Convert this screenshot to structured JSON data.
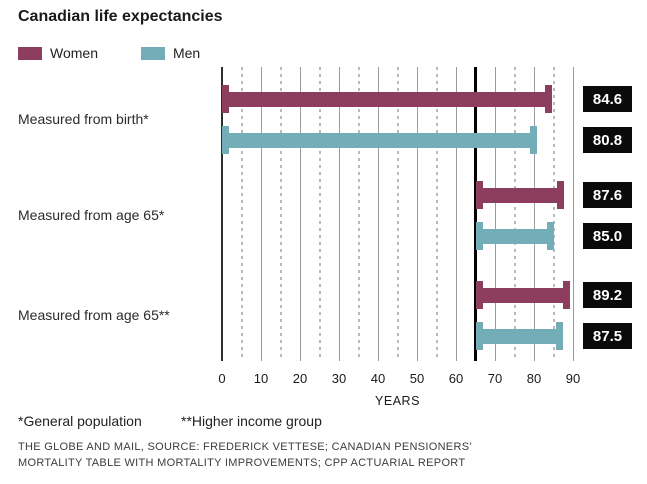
{
  "title": "Canadian life expectancies",
  "legend": {
    "items": [
      {
        "label": "Women",
        "color": "#8d3e5f"
      },
      {
        "label": "Men",
        "color": "#72adb8"
      }
    ]
  },
  "chart_data": {
    "type": "bar",
    "orientation": "horizontal",
    "title": "Canadian life expectancies",
    "categories": [
      "Measured from birth*",
      "Measured from age 65*",
      "Measured from age 65**"
    ],
    "bar_start_x": [
      0,
      65,
      65
    ],
    "series": [
      {
        "name": "Women",
        "color": "#8d3e5f",
        "values": [
          84.6,
          87.6,
          89.2
        ]
      },
      {
        "name": "Men",
        "color": "#72adb8",
        "values": [
          80.8,
          85.0,
          87.5
        ]
      }
    ],
    "value_labels": [
      [
        "84.6",
        "87.6",
        "89.2"
      ],
      [
        "80.8",
        "85.0",
        "87.5"
      ]
    ],
    "xlabel": "YEARS",
    "xlim": [
      0,
      91
    ],
    "major_ticks": [
      0,
      10,
      20,
      30,
      40,
      50,
      60,
      70,
      80,
      90
    ],
    "minor_ticks": [
      5,
      15,
      25,
      35,
      45,
      55,
      65,
      75,
      85
    ],
    "reference_line_x": 65,
    "grid": "on",
    "legend_position": "top-left",
    "value_boxes": "black boxes with white bold numbers at right of plot"
  },
  "footnotes": [
    "*General population",
    "**Higher income group"
  ],
  "source_lines": [
    "THE GLOBE AND MAIL, SOURCE: FREDERICK VETTESE; CANADIAN PENSIONERS’",
    "MORTALITY TABLE WITH MORTALITY IMPROVEMENTS; CPP ACTUARIAL REPORT"
  ],
  "colors": {
    "women": "#8d3e5f",
    "men": "#72adb8",
    "grid_major": "#9b9b9b",
    "grid_minor": "#b9b9b9",
    "axis": "#2e2e2e",
    "reference_line": "#000000",
    "value_box_bg": "#0a0a0a",
    "value_box_text": "#ffffff"
  }
}
